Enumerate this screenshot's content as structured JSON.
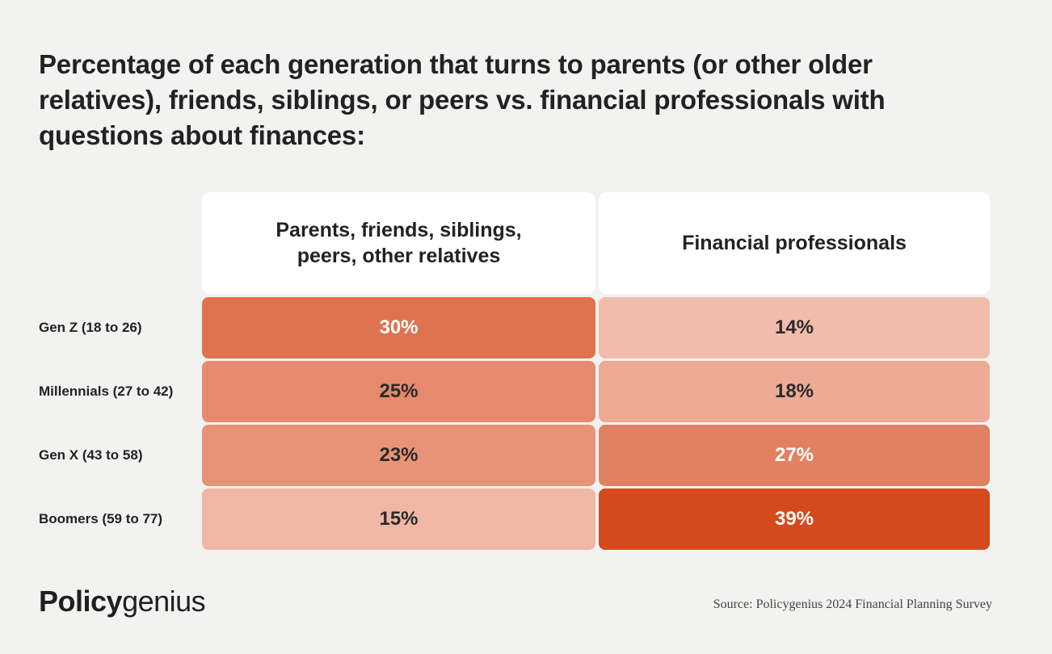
{
  "title": "Percentage of each generation that turns to parents (or other older relatives), friends, siblings, or peers vs. financial professionals with questions about finances:",
  "chart_data": {
    "type": "table",
    "columns": [
      {
        "label_lines": [
          "Parents, friends, siblings,",
          "peers, other relatives"
        ]
      },
      {
        "label_lines": [
          "Financial professionals"
        ]
      }
    ],
    "rows": [
      {
        "label": "Gen Z (18 to 26)",
        "values": [
          30,
          14
        ],
        "display": [
          "30%",
          "14%"
        ]
      },
      {
        "label": "Millennials (27 to 42)",
        "values": [
          25,
          18
        ],
        "display": [
          "25%",
          "18%"
        ]
      },
      {
        "label": "Gen X (43 to 58)",
        "values": [
          23,
          27
        ],
        "display": [
          "23%",
          "27%"
        ]
      },
      {
        "label": "Boomers (59 to 77)",
        "values": [
          15,
          39
        ],
        "display": [
          "15%",
          "39%"
        ]
      }
    ],
    "unit": "%"
  },
  "colors": {
    "background": "#f2f2f1",
    "header_bg": "#ffffff",
    "scale_low": "#f1bcab",
    "scale_high": "#d54a1d"
  },
  "footer": {
    "logo_bold": "Policy",
    "logo_light": "genius",
    "source": "Source: Policygenius 2024 Financial Planning Survey"
  }
}
